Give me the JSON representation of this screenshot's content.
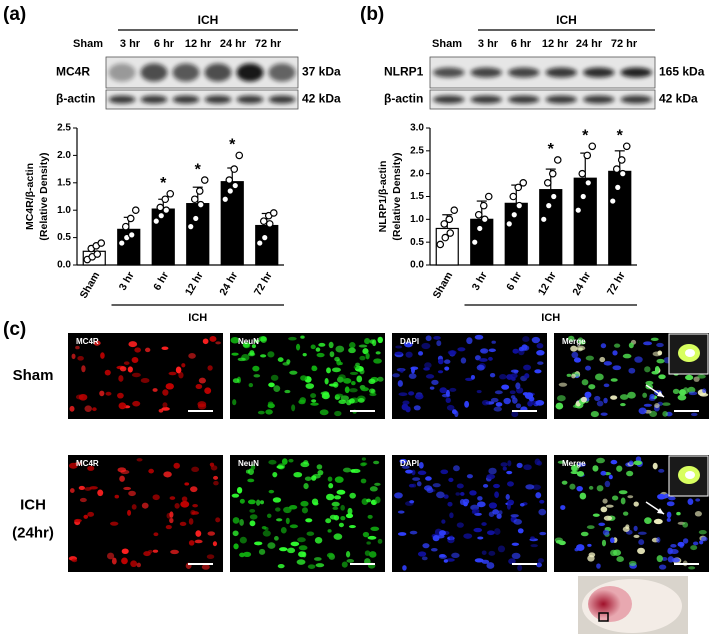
{
  "chart_data": [
    {
      "type": "bar",
      "panel": "(a)",
      "ylabel": [
        "MC4R/β-actin",
        "(Relative Density)"
      ],
      "group_label": "ICH",
      "categories": [
        "Sham",
        "3 hr",
        "6 hr",
        "12 hr",
        "24 hr",
        "72 hr"
      ],
      "values": [
        0.25,
        0.65,
        1.02,
        1.12,
        1.52,
        0.72
      ],
      "errors": [
        0.1,
        0.22,
        0.18,
        0.3,
        0.25,
        0.22
      ],
      "colors": [
        "#ffffff",
        "#000000",
        "#000000",
        "#000000",
        "#000000",
        "#000000"
      ],
      "points": [
        [
          0.1,
          0.15,
          0.2,
          0.3,
          0.35,
          0.4
        ],
        [
          0.4,
          0.5,
          0.55,
          0.7,
          0.85,
          1.0
        ],
        [
          0.8,
          0.9,
          1.0,
          1.05,
          1.2,
          1.3
        ],
        [
          0.7,
          0.85,
          1.1,
          1.2,
          1.35,
          1.55
        ],
        [
          1.2,
          1.35,
          1.45,
          1.55,
          1.75,
          2.0
        ],
        [
          0.4,
          0.5,
          0.75,
          0.8,
          0.9,
          0.95
        ]
      ],
      "annotations": [
        {
          "x": "6 hr",
          "text": "*"
        },
        {
          "x": "12 hr",
          "text": "*"
        },
        {
          "x": "24 hr",
          "text": "*"
        }
      ],
      "ylim": [
        0,
        2.5
      ],
      "yticks": [
        {
          "value": 0,
          "label": "0.0"
        },
        0.5,
        {
          "value": 1,
          "label": "1.0"
        },
        1.5,
        {
          "value": 2,
          "label": "2.0"
        },
        2.5
      ]
    },
    {
      "type": "bar",
      "panel": "(b)",
      "ylabel": [
        "NLRP1/β-actin",
        "(Relative Density)"
      ],
      "group_label": "ICH",
      "categories": [
        "Sham",
        "3 hr",
        "6 hr",
        "12 hr",
        "24 hr",
        "72 hr"
      ],
      "values": [
        0.8,
        1.0,
        1.35,
        1.65,
        1.9,
        2.05
      ],
      "errors": [
        0.3,
        0.4,
        0.4,
        0.45,
        0.55,
        0.45
      ],
      "colors": [
        "#ffffff",
        "#000000",
        "#000000",
        "#000000",
        "#000000",
        "#000000"
      ],
      "points": [
        [
          0.45,
          0.6,
          0.7,
          0.9,
          1.0,
          1.2
        ],
        [
          0.5,
          0.8,
          1.0,
          1.1,
          1.3,
          1.5
        ],
        [
          0.9,
          1.1,
          1.3,
          1.5,
          1.7,
          1.8
        ],
        [
          1.0,
          1.3,
          1.5,
          1.8,
          2.0,
          2.3
        ],
        [
          1.2,
          1.5,
          1.8,
          2.0,
          2.4,
          2.6
        ],
        [
          1.4,
          1.7,
          2.0,
          2.1,
          2.3,
          2.6
        ]
      ],
      "annotations": [
        {
          "x": "12 hr",
          "text": "*"
        },
        {
          "x": "24 hr",
          "text": "*"
        },
        {
          "x": "72 hr",
          "text": "*"
        }
      ],
      "ylim": [
        0,
        3
      ],
      "yticks": [
        {
          "value": 0,
          "label": "0.0"
        },
        0.5,
        {
          "value": 1,
          "label": "1.0"
        },
        1.5,
        {
          "value": 2,
          "label": "2.0"
        },
        2.5,
        {
          "value": 3,
          "label": "3.0"
        }
      ]
    }
  ],
  "blots": [
    {
      "panel": "(a)",
      "group": "ICH",
      "lanes": [
        "Sham",
        "3 hr",
        "6 hr",
        "12 hr",
        "24 hr",
        "72 hr"
      ],
      "rows": [
        {
          "protein": "MC4R",
          "size": "37 kDa"
        },
        {
          "protein": "β-actin",
          "size": "42 kDa"
        }
      ]
    },
    {
      "panel": "(b)",
      "group": "ICH",
      "lanes": [
        "Sham",
        "3 hr",
        "6 hr",
        "12 hr",
        "24 hr",
        "72 hr"
      ],
      "rows": [
        {
          "protein": "NLRP1",
          "size": "165 kDa"
        },
        {
          "protein": "β-actin",
          "size": "42 kDa"
        }
      ]
    }
  ],
  "microscopy": {
    "panel": "(c)",
    "rows": [
      {
        "label": [
          "Sham"
        ],
        "channels": [
          "MC4R",
          "NeuN",
          "DAPI",
          "Merge"
        ]
      },
      {
        "label": [
          "ICH",
          "(24hr)"
        ],
        "channels": [
          "MC4R",
          "NeuN",
          "DAPI",
          "Merge"
        ]
      }
    ]
  }
}
